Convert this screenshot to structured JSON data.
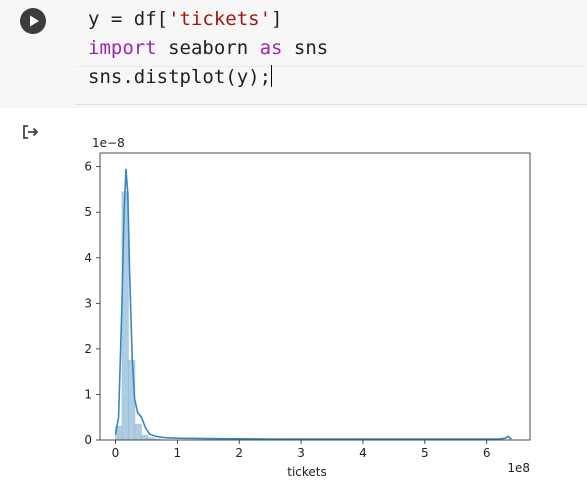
{
  "cell": {
    "run_icon": "play-icon",
    "code_lines": [
      {
        "parts": [
          {
            "t": "y = df[",
            "c": ""
          },
          {
            "t": "'tickets'",
            "c": "str"
          },
          {
            "t": "]",
            "c": ""
          }
        ]
      },
      {
        "parts": [
          {
            "t": "import",
            "c": "kw"
          },
          {
            "t": " seaborn ",
            "c": ""
          },
          {
            "t": "as",
            "c": "kw"
          },
          {
            "t": " sns",
            "c": ""
          }
        ]
      },
      {
        "parts": [
          {
            "t": "sns.distplot(y);",
            "c": ""
          }
        ]
      }
    ]
  },
  "output": {
    "icon": "output-arrow-icon"
  },
  "chart_data": {
    "type": "bar",
    "xlabel": "tickets",
    "ylabel": "",
    "x_offset_label": "1e8",
    "y_offset_label": "1e−8",
    "xlim": [
      -0.25,
      6.7
    ],
    "ylim": [
      0,
      6.3
    ],
    "x_ticks": [
      0,
      1,
      2,
      3,
      4,
      5,
      6
    ],
    "y_ticks": [
      0,
      1,
      2,
      3,
      4,
      5,
      6
    ],
    "hist_bin_width": 0.105,
    "hist_bins": [
      {
        "x": 0.0,
        "y": 0.3
      },
      {
        "x": 0.105,
        "y": 5.45
      },
      {
        "x": 0.21,
        "y": 1.75
      },
      {
        "x": 0.315,
        "y": 0.35
      },
      {
        "x": 0.42,
        "y": 0.1
      },
      {
        "x": 0.525,
        "y": 0.05
      },
      {
        "x": 0.63,
        "y": 0.02
      }
    ],
    "kde": [
      [
        0.0,
        0.12
      ],
      [
        0.05,
        0.5
      ],
      [
        0.1,
        2.8
      ],
      [
        0.14,
        5.0
      ],
      [
        0.17,
        5.95
      ],
      [
        0.2,
        5.4
      ],
      [
        0.23,
        3.6
      ],
      [
        0.27,
        1.8
      ],
      [
        0.31,
        0.9
      ],
      [
        0.36,
        0.6
      ],
      [
        0.42,
        0.5
      ],
      [
        0.48,
        0.28
      ],
      [
        0.55,
        0.13
      ],
      [
        0.65,
        0.08
      ],
      [
        0.8,
        0.05
      ],
      [
        1.0,
        0.04
      ],
      [
        1.5,
        0.03
      ],
      [
        2.5,
        0.02
      ],
      [
        3.5,
        0.02
      ],
      [
        4.5,
        0.02
      ],
      [
        5.5,
        0.02
      ],
      [
        6.2,
        0.02
      ],
      [
        6.3,
        0.04
      ],
      [
        6.35,
        0.08
      ],
      [
        6.4,
        0.02
      ]
    ],
    "colors": {
      "hist_fill": "#a6c8e0",
      "kde_line": "#3a87c0"
    }
  }
}
